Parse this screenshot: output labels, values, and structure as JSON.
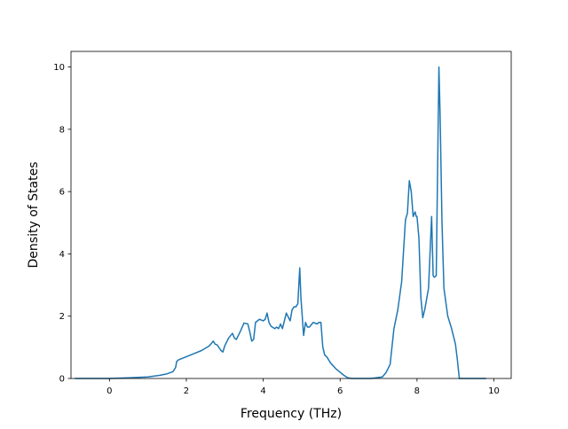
{
  "chart_data": {
    "type": "line",
    "title": "",
    "xlabel": "Frequency (THz)",
    "ylabel": "Density of States",
    "xlim": [
      -1.0,
      10.45
    ],
    "ylim": [
      0,
      10.5
    ],
    "xticks": [
      0,
      2,
      4,
      6,
      8,
      10
    ],
    "yticks": [
      0,
      2,
      4,
      6,
      8,
      10
    ],
    "grid": false,
    "legend": "none",
    "line_color": "#1f77b4",
    "series": [
      {
        "x": [
          -0.9,
          0.0,
          0.5,
          1.0,
          1.3,
          1.5,
          1.65,
          1.72,
          1.75,
          1.8,
          2.0,
          2.2,
          2.4,
          2.6,
          2.7,
          2.75,
          2.8,
          2.9,
          2.95,
          3.0,
          3.1,
          3.2,
          3.25,
          3.3,
          3.4,
          3.5,
          3.6,
          3.65,
          3.7,
          3.75,
          3.8,
          3.9,
          4.0,
          4.05,
          4.1,
          4.15,
          4.2,
          4.3,
          4.35,
          4.4,
          4.45,
          4.5,
          4.6,
          4.7,
          4.75,
          4.8,
          4.85,
          4.9,
          4.95,
          4.98,
          5.05,
          5.1,
          5.15,
          5.2,
          5.3,
          5.4,
          5.45,
          5.5,
          5.55,
          5.6,
          5.65,
          5.75,
          5.9,
          6.0,
          6.1,
          6.2,
          6.3,
          6.5,
          6.8,
          7.1,
          7.2,
          7.3,
          7.4,
          7.5,
          7.6,
          7.7,
          7.75,
          7.8,
          7.85,
          7.9,
          7.95,
          7.98,
          8.0,
          8.05,
          8.1,
          8.15,
          8.2,
          8.3,
          8.38,
          8.42,
          8.45,
          8.5,
          8.57,
          8.6,
          8.65,
          8.7,
          8.8,
          8.9,
          9.0,
          9.05,
          9.1,
          9.5,
          9.8
        ],
        "y": [
          0.0,
          0.0,
          0.02,
          0.05,
          0.1,
          0.15,
          0.22,
          0.35,
          0.55,
          0.6,
          0.7,
          0.8,
          0.9,
          1.05,
          1.2,
          1.1,
          1.08,
          0.9,
          0.85,
          1.05,
          1.3,
          1.45,
          1.3,
          1.25,
          1.5,
          1.78,
          1.75,
          1.5,
          1.2,
          1.25,
          1.8,
          1.9,
          1.85,
          1.9,
          2.1,
          1.8,
          1.68,
          1.6,
          1.65,
          1.6,
          1.75,
          1.6,
          2.1,
          1.85,
          2.2,
          2.3,
          2.3,
          2.4,
          3.55,
          2.6,
          1.38,
          1.8,
          1.65,
          1.65,
          1.8,
          1.75,
          1.8,
          1.8,
          1.0,
          0.75,
          0.7,
          0.5,
          0.3,
          0.2,
          0.1,
          0.02,
          0.0,
          0.0,
          0.0,
          0.05,
          0.2,
          0.45,
          1.6,
          2.2,
          3.1,
          5.1,
          5.3,
          6.35,
          6.0,
          5.2,
          5.35,
          5.2,
          5.2,
          4.5,
          2.6,
          1.95,
          2.2,
          2.9,
          5.2,
          3.3,
          3.25,
          3.3,
          10.0,
          8.5,
          5.0,
          2.9,
          2.0,
          1.6,
          1.1,
          0.6,
          0.0,
          0.0,
          0.0
        ]
      }
    ]
  }
}
